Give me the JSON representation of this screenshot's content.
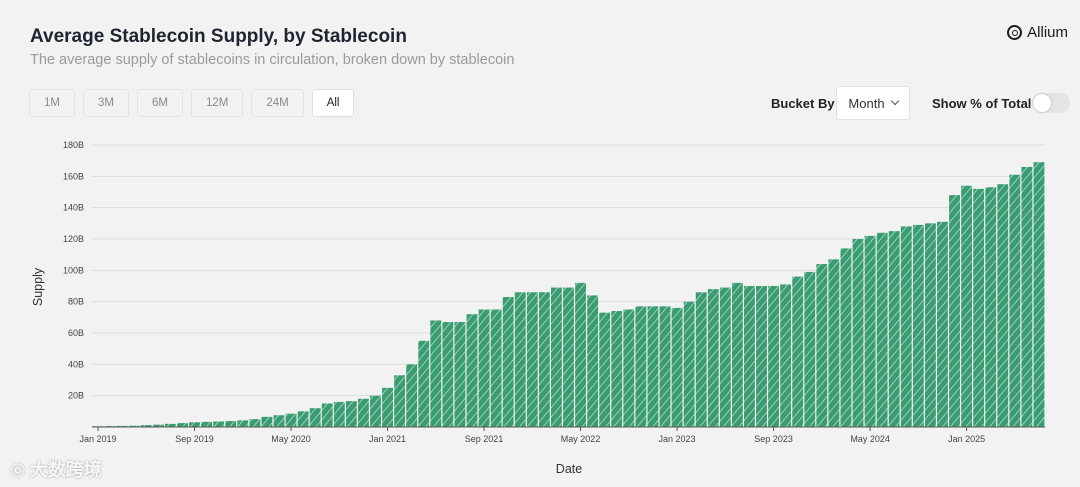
{
  "header": {
    "title": "Average Stablecoin Supply, by Stablecoin",
    "subtitle": "The average supply of stablecoins in circulation, broken down by stablecoin",
    "brand": "Allium"
  },
  "controls": {
    "ranges": [
      "1M",
      "3M",
      "6M",
      "12M",
      "24M",
      "All"
    ],
    "active_range": "All",
    "bucket_label": "Bucket By",
    "bucket_value": "Month",
    "pct_label": "Show % of Total",
    "pct_on": false
  },
  "watermark": "大数跨境",
  "chart_data": {
    "type": "bar",
    "xlabel": "Date",
    "ylabel": "Supply",
    "ylim": [
      0,
      180
    ],
    "y_ticks": [
      "20B",
      "40B",
      "60B",
      "80B",
      "100B",
      "120B",
      "140B",
      "160B",
      "180B"
    ],
    "x_tick_labels": [
      "Jan 2019",
      "Sep 2019",
      "May 2020",
      "Jan 2021",
      "Sep 2021",
      "May 2022",
      "Jan 2023",
      "Sep 2023",
      "May 2024",
      "Jan 2025"
    ],
    "x_tick_indices": [
      0,
      8,
      16,
      24,
      32,
      40,
      48,
      56,
      64,
      72
    ],
    "grid": true,
    "bar_color": "#3a9d72",
    "categories": [
      "2019-01",
      "2019-02",
      "2019-03",
      "2019-04",
      "2019-05",
      "2019-06",
      "2019-07",
      "2019-08",
      "2019-09",
      "2019-10",
      "2019-11",
      "2019-12",
      "2020-01",
      "2020-02",
      "2020-03",
      "2020-04",
      "2020-05",
      "2020-06",
      "2020-07",
      "2020-08",
      "2020-09",
      "2020-10",
      "2020-11",
      "2020-12",
      "2021-01",
      "2021-02",
      "2021-03",
      "2021-04",
      "2021-05",
      "2021-06",
      "2021-07",
      "2021-08",
      "2021-09",
      "2021-10",
      "2021-11",
      "2021-12",
      "2022-01",
      "2022-02",
      "2022-03",
      "2022-04",
      "2022-05",
      "2022-06",
      "2022-07",
      "2022-08",
      "2022-09",
      "2022-10",
      "2022-11",
      "2022-12",
      "2023-01",
      "2023-02",
      "2023-03",
      "2023-04",
      "2023-05",
      "2023-06",
      "2023-07",
      "2023-08",
      "2023-09",
      "2023-10",
      "2023-11",
      "2023-12",
      "2024-01",
      "2024-02",
      "2024-03",
      "2024-04",
      "2024-05",
      "2024-06",
      "2024-07",
      "2024-08",
      "2024-09",
      "2024-10",
      "2024-11",
      "2024-12",
      "2025-01",
      "2025-02",
      "2025-03",
      "2025-04",
      "2025-05",
      "2025-06",
      "2025-07"
    ],
    "values": [
      0.5,
      0.6,
      0.7,
      0.8,
      1.2,
      1.5,
      2.0,
      2.5,
      3.0,
      3.3,
      3.5,
      3.8,
      4.2,
      5.0,
      6.5,
      7.5,
      8.5,
      10,
      12,
      15,
      16,
      16.5,
      18,
      20,
      25,
      33,
      40,
      55,
      68,
      67,
      67,
      72,
      75,
      75,
      83,
      86,
      86,
      86,
      89,
      89,
      92,
      84,
      73,
      74,
      75,
      77,
      77,
      77,
      76,
      80,
      86,
      88,
      89,
      92,
      90,
      90,
      90,
      91,
      96,
      99,
      104,
      107,
      114,
      120,
      122,
      124,
      125,
      128,
      129,
      130,
      131,
      148,
      154,
      152,
      153,
      155,
      161,
      166,
      169
    ]
  }
}
